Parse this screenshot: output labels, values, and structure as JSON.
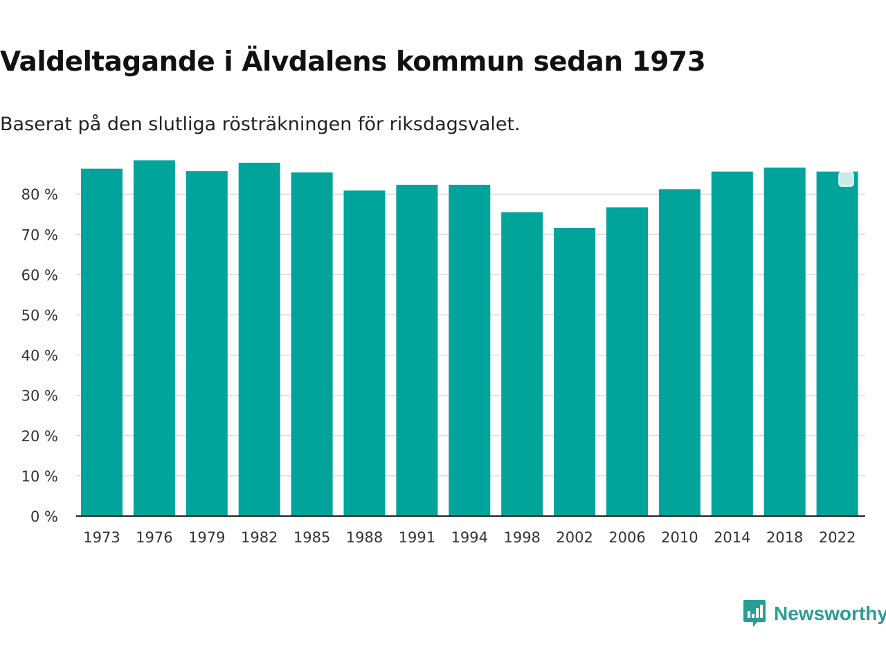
{
  "header": {
    "title": "Valdeltagande i Älvdalens kommun sedan 1973",
    "subtitle": "Baserat på den slutliga rösträkningen för riksdagsvalet."
  },
  "brand": {
    "name": "Newsworthy",
    "icon": "newsworthy-logo-icon",
    "color": "#2a9d95"
  },
  "colors": {
    "bar": "#00a49a",
    "grid": "#dddddd",
    "axis": "#222222",
    "legend_marker": "#c9ebe8"
  },
  "chart_data": {
    "type": "bar",
    "title": "Valdeltagande i Älvdalens kommun sedan 1973",
    "subtitle": "Baserat på den slutliga rösträkningen för riksdagsvalet.",
    "xlabel": "",
    "ylabel": "",
    "ylim": [
      0,
      87
    ],
    "grid": true,
    "legend": "top-right",
    "categories": [
      "1973",
      "1976",
      "1979",
      "1982",
      "1985",
      "1988",
      "1991",
      "1994",
      "1998",
      "2002",
      "2006",
      "2010",
      "2014",
      "2018",
      "2022"
    ],
    "values": [
      86.3,
      88.4,
      85.7,
      87.8,
      85.4,
      80.9,
      82.3,
      82.3,
      75.5,
      71.6,
      76.7,
      81.2,
      85.6,
      86.6,
      85.6
    ],
    "yticks": [
      0,
      10,
      20,
      30,
      40,
      50,
      60,
      70,
      80
    ],
    "ytick_labels": [
      "0 %",
      "10 %",
      "20 %",
      "30 %",
      "40 %",
      "50 %",
      "60 %",
      "70 %",
      "80 %"
    ]
  }
}
